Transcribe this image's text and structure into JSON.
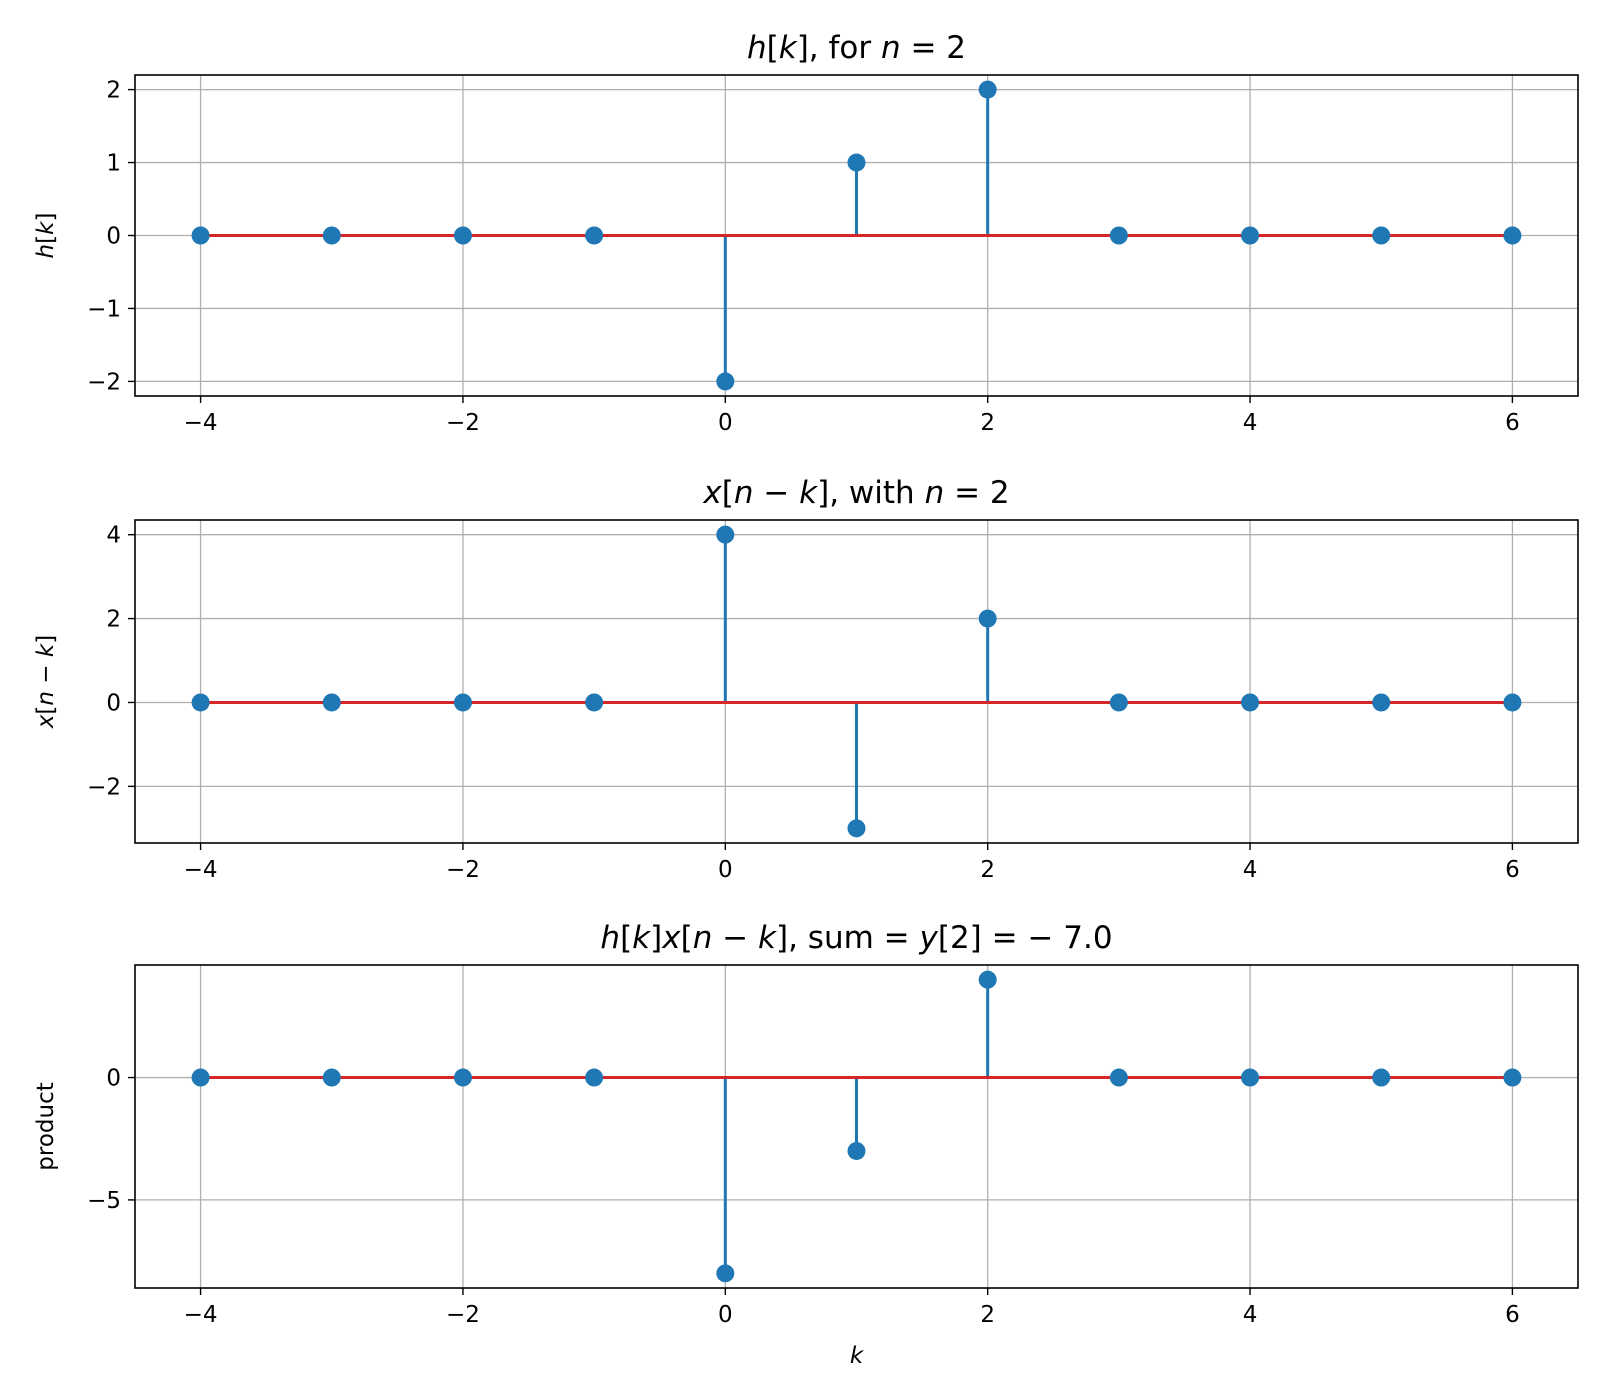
{
  "chart_data": [
    {
      "type": "stem",
      "title": [
        {
          "t": "h",
          "i": true
        },
        {
          "t": "[",
          "i": false
        },
        {
          "t": "k",
          "i": true
        },
        {
          "t": "], for ",
          "i": false
        },
        {
          "t": "n",
          "i": true
        },
        {
          "t": " = 2",
          "i": false
        }
      ],
      "ylabel": [
        {
          "t": "h",
          "i": true
        },
        {
          "t": "[",
          "i": false
        },
        {
          "t": "k",
          "i": true
        },
        {
          "t": "]",
          "i": false
        }
      ],
      "xlabel": [],
      "x": [
        -4,
        -3,
        -2,
        -1,
        0,
        1,
        2,
        3,
        4,
        5,
        6
      ],
      "y": [
        0,
        0,
        0,
        0,
        -2,
        1,
        2,
        0,
        0,
        0,
        0
      ],
      "xlim": [
        -4.5,
        6.5
      ],
      "ylim": [
        -2.2,
        2.2
      ],
      "xticks": [
        -4,
        -2,
        0,
        2,
        4,
        6
      ],
      "xtick_labels": [
        "−4",
        "−2",
        "0",
        "2",
        "4",
        "6"
      ],
      "yticks": [
        -2,
        -1,
        0,
        1,
        2
      ],
      "ytick_labels": [
        "−2",
        "−1",
        "0",
        "1",
        "2"
      ],
      "grid": true
    },
    {
      "type": "stem",
      "title": [
        {
          "t": "x",
          "i": true
        },
        {
          "t": "[",
          "i": false
        },
        {
          "t": "n",
          "i": true
        },
        {
          "t": " − ",
          "i": false
        },
        {
          "t": "k",
          "i": true
        },
        {
          "t": "], with ",
          "i": false
        },
        {
          "t": "n",
          "i": true
        },
        {
          "t": " = 2",
          "i": false
        }
      ],
      "ylabel": [
        {
          "t": "x",
          "i": true
        },
        {
          "t": "[",
          "i": false
        },
        {
          "t": "n",
          "i": true
        },
        {
          "t": " − ",
          "i": false
        },
        {
          "t": "k",
          "i": true
        },
        {
          "t": "]",
          "i": false
        }
      ],
      "xlabel": [],
      "x": [
        -4,
        -3,
        -2,
        -1,
        0,
        1,
        2,
        3,
        4,
        5,
        6
      ],
      "y": [
        0,
        0,
        0,
        0,
        4,
        -3,
        2,
        0,
        0,
        0,
        0
      ],
      "xlim": [
        -4.5,
        6.5
      ],
      "ylim": [
        -3.35,
        4.35
      ],
      "xticks": [
        -4,
        -2,
        0,
        2,
        4,
        6
      ],
      "xtick_labels": [
        "−4",
        "−2",
        "0",
        "2",
        "4",
        "6"
      ],
      "yticks": [
        -2,
        0,
        2,
        4
      ],
      "ytick_labels": [
        "−2",
        "0",
        "2",
        "4"
      ],
      "grid": true
    },
    {
      "type": "stem",
      "title": [
        {
          "t": "h",
          "i": true
        },
        {
          "t": "[",
          "i": false
        },
        {
          "t": "k",
          "i": true
        },
        {
          "t": "]",
          "i": false
        },
        {
          "t": "x",
          "i": true
        },
        {
          "t": "[",
          "i": false
        },
        {
          "t": "n",
          "i": true
        },
        {
          "t": " − ",
          "i": false
        },
        {
          "t": "k",
          "i": true
        },
        {
          "t": "], sum = ",
          "i": false
        },
        {
          "t": "y",
          "i": true
        },
        {
          "t": "[2] = − 7.0",
          "i": false
        }
      ],
      "ylabel": [
        {
          "t": "product",
          "i": false
        }
      ],
      "xlabel": [
        {
          "t": "k",
          "i": true
        }
      ],
      "x": [
        -4,
        -3,
        -2,
        -1,
        0,
        1,
        2,
        3,
        4,
        5,
        6
      ],
      "y": [
        0,
        0,
        0,
        0,
        -8,
        -3,
        4,
        0,
        0,
        0,
        0
      ],
      "xlim": [
        -4.5,
        6.5
      ],
      "ylim": [
        -8.6,
        4.6
      ],
      "xticks": [
        -4,
        -2,
        0,
        2,
        4,
        6
      ],
      "xtick_labels": [
        "−4",
        "−2",
        "0",
        "2",
        "4",
        "6"
      ],
      "yticks": [
        -5,
        0
      ],
      "ytick_labels": [
        "−5",
        "0"
      ],
      "grid": true
    }
  ],
  "colors": {
    "stem": "#1f77b4",
    "baseline": "#d62728",
    "grid": "#b0b0b0",
    "axes": "#000000"
  }
}
